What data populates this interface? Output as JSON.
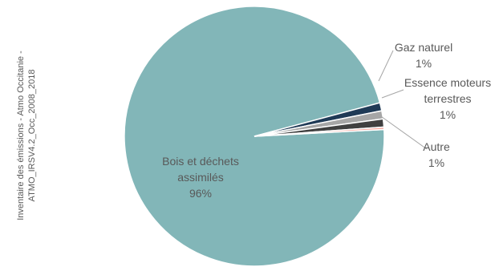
{
  "source_note": {
    "line1": "Inventaire des émissions - Atmo Occitanie -",
    "line2": "ATMO_IRSV4.2_Occ_2008_2018"
  },
  "chart_data": {
    "type": "pie",
    "title": "",
    "labels": [
      "Bois et déchets assimilés",
      "Autre",
      "Essence moteurs terrestres",
      "Gaz naturel",
      ""
    ],
    "values": [
      96,
      1,
      1,
      1,
      0.3
    ],
    "data_labels": [
      "96%",
      "1%",
      "1%",
      "1%",
      ""
    ],
    "colors": [
      "#82b6b8",
      "#1f3a56",
      "#a6a6a6",
      "#404040",
      "#f4a9a0"
    ],
    "start_angle_deg": -3
  }
}
